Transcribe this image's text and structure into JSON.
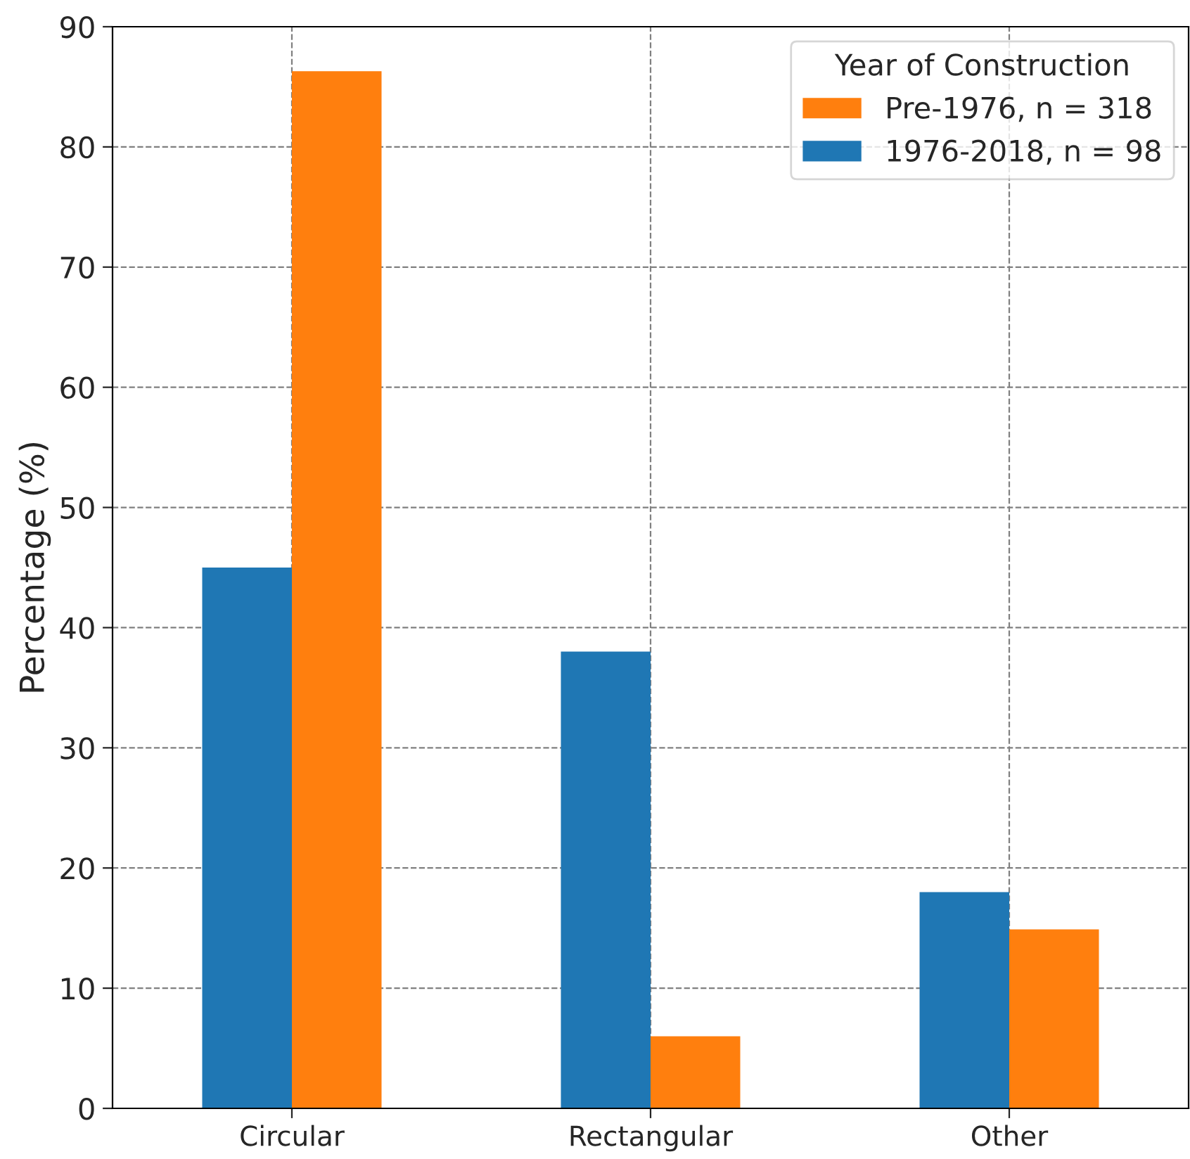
{
  "chart_data": {
    "type": "bar",
    "ylabel": "Percentage (%)",
    "legend_title": "Year of Construction",
    "categories": [
      "Circular",
      "Rectangular",
      "Other"
    ],
    "series": [
      {
        "name": "1976-2018, n = 98",
        "color": "#1f77b4",
        "values": [
          45.0,
          38.0,
          18.0
        ]
      },
      {
        "name": "Pre-1976, n = 318",
        "color": "#ff7f0e",
        "values": [
          86.3,
          6.0,
          14.9
        ]
      }
    ],
    "ylim": [
      0,
      90
    ],
    "yticks": [
      0,
      10,
      20,
      30,
      40,
      50,
      60,
      70,
      80,
      90
    ],
    "grid": true,
    "legend": "top right"
  }
}
